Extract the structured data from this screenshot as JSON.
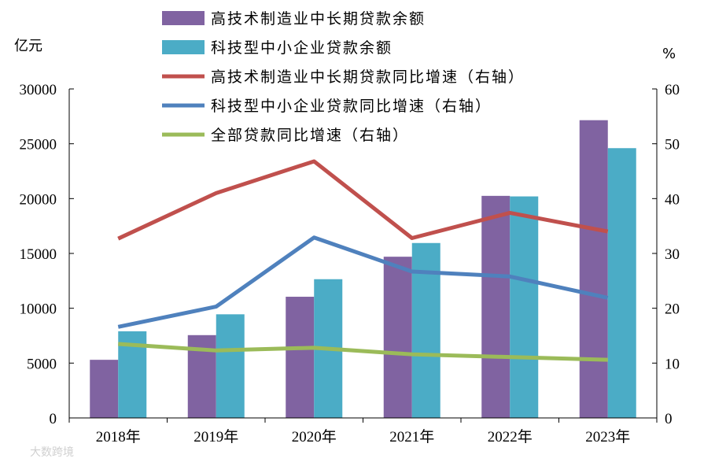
{
  "chart_data": {
    "type": "bar",
    "categories": [
      "2018年",
      "2019年",
      "2020年",
      "2021年",
      "2022年",
      "2023年"
    ],
    "left_axis": {
      "unit": "亿元",
      "ylim": [
        0,
        30000
      ],
      "ticks": [
        "0",
        "5000",
        "10000",
        "15000",
        "20000",
        "25000",
        "30000"
      ]
    },
    "right_axis": {
      "unit": "%",
      "ylim": [
        0,
        60
      ],
      "ticks": [
        "0",
        "10",
        "20",
        "30",
        "40",
        "50",
        "60"
      ]
    },
    "bar_series": [
      {
        "name": "高技术制造业中长期贷款余额",
        "color": "#8063a1",
        "axis": "left",
        "values": [
          5300,
          7550,
          11050,
          14700,
          20250,
          27150
        ]
      },
      {
        "name": "科技型中小企业贷款余额",
        "color": "#4bacc6",
        "axis": "left",
        "values": [
          7900,
          9450,
          12650,
          15950,
          20200,
          24600
        ]
      }
    ],
    "line_series": [
      {
        "name": "高技术制造业中长期贷款同比增速（右轴）",
        "color": "#c0504d",
        "axis": "right",
        "values": [
          32.7,
          41.0,
          46.8,
          32.8,
          37.4,
          34.0
        ]
      },
      {
        "name": "科技型中小企业贷款同比增速（右轴）",
        "color": "#4f81bd",
        "axis": "right",
        "values": [
          16.6,
          20.3,
          32.9,
          26.7,
          25.8,
          21.9
        ]
      },
      {
        "name": "全部贷款同比增速（右轴）",
        "color": "#9bbb59",
        "axis": "right",
        "values": [
          13.5,
          12.3,
          12.8,
          11.6,
          11.1,
          10.6
        ]
      }
    ],
    "legend_position": "top-center",
    "grid": false
  },
  "watermark": "大数跨境"
}
